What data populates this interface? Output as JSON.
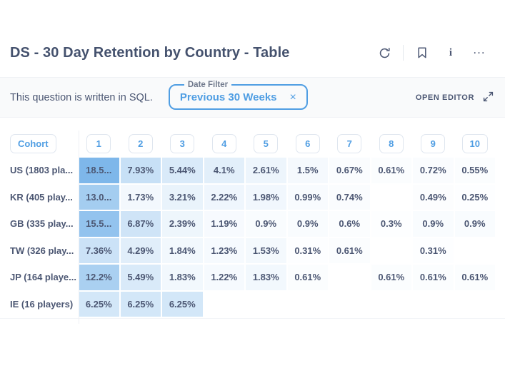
{
  "colors": {
    "accent": "#509ee3",
    "text_dark": "#4c5773",
    "heat_rgb": [
      80,
      158,
      227
    ],
    "heat_scale_max": 25
  },
  "header": {
    "title": "DS - 30 Day Retention by Country - Table",
    "icons": [
      "refresh-icon",
      "bookmark-icon",
      "info-icon",
      "ellipsis-icon"
    ],
    "info_glyph": "i",
    "ellipsis_glyph": "..."
  },
  "filter_bar": {
    "note": "This question is written in SQL.",
    "date_filter": {
      "label": "Date Filter",
      "value": "Previous 30 Weeks",
      "clear_glyph": "×"
    },
    "open_editor_label": "OPEN EDITOR"
  },
  "chart_data": {
    "type": "table",
    "title": "DS - 30 Day Retention by Country - Table",
    "cohort_header": "Cohort",
    "columns": [
      "1",
      "2",
      "3",
      "4",
      "5",
      "6",
      "7",
      "8",
      "9",
      "10"
    ],
    "rows": [
      {
        "cohort": "US (1803 pla...",
        "cells": [
          {
            "text": "18.5...",
            "value": 18.5
          },
          {
            "text": "7.93%",
            "value": 7.93
          },
          {
            "text": "5.44%",
            "value": 5.44
          },
          {
            "text": "4.1%",
            "value": 4.1
          },
          {
            "text": "2.61%",
            "value": 2.61
          },
          {
            "text": "1.5%",
            "value": 1.5
          },
          {
            "text": "0.67%",
            "value": 0.67
          },
          {
            "text": "0.61%",
            "value": 0.61
          },
          {
            "text": "0.72%",
            "value": 0.72
          },
          {
            "text": "0.55%",
            "value": 0.55
          }
        ]
      },
      {
        "cohort": "KR (405 play...",
        "cells": [
          {
            "text": "13.0...",
            "value": 13.0
          },
          {
            "text": "1.73%",
            "value": 1.73
          },
          {
            "text": "3.21%",
            "value": 3.21
          },
          {
            "text": "2.22%",
            "value": 2.22
          },
          {
            "text": "1.98%",
            "value": 1.98
          },
          {
            "text": "0.99%",
            "value": 0.99
          },
          {
            "text": "0.74%",
            "value": 0.74
          },
          null,
          {
            "text": "0.49%",
            "value": 0.49
          },
          {
            "text": "0.25%",
            "value": 0.25
          }
        ]
      },
      {
        "cohort": "GB (335 play...",
        "cells": [
          {
            "text": "15.5...",
            "value": 15.5
          },
          {
            "text": "6.87%",
            "value": 6.87
          },
          {
            "text": "2.39%",
            "value": 2.39
          },
          {
            "text": "1.19%",
            "value": 1.19
          },
          {
            "text": "0.9%",
            "value": 0.9
          },
          {
            "text": "0.9%",
            "value": 0.9
          },
          {
            "text": "0.6%",
            "value": 0.6
          },
          {
            "text": "0.3%",
            "value": 0.3
          },
          {
            "text": "0.9%",
            "value": 0.9
          },
          {
            "text": "0.9%",
            "value": 0.9
          }
        ]
      },
      {
        "cohort": "TW (326 play...",
        "cells": [
          {
            "text": "7.36%",
            "value": 7.36
          },
          {
            "text": "4.29%",
            "value": 4.29
          },
          {
            "text": "1.84%",
            "value": 1.84
          },
          {
            "text": "1.23%",
            "value": 1.23
          },
          {
            "text": "1.53%",
            "value": 1.53
          },
          {
            "text": "0.31%",
            "value": 0.31
          },
          {
            "text": "0.61%",
            "value": 0.61
          },
          null,
          {
            "text": "0.31%",
            "value": 0.31
          },
          null
        ]
      },
      {
        "cohort": "JP (164 playe...",
        "cells": [
          {
            "text": "12.2%",
            "value": 12.2
          },
          {
            "text": "5.49%",
            "value": 5.49
          },
          {
            "text": "1.83%",
            "value": 1.83
          },
          {
            "text": "1.22%",
            "value": 1.22
          },
          {
            "text": "1.83%",
            "value": 1.83
          },
          {
            "text": "0.61%",
            "value": 0.61
          },
          null,
          {
            "text": "0.61%",
            "value": 0.61
          },
          {
            "text": "0.61%",
            "value": 0.61
          },
          {
            "text": "0.61%",
            "value": 0.61
          }
        ]
      },
      {
        "cohort": "IE (16 players)",
        "cells": [
          {
            "text": "6.25%",
            "value": 6.25
          },
          {
            "text": "6.25%",
            "value": 6.25
          },
          {
            "text": "6.25%",
            "value": 6.25
          },
          null,
          null,
          null,
          null,
          null,
          null,
          null
        ]
      }
    ]
  }
}
